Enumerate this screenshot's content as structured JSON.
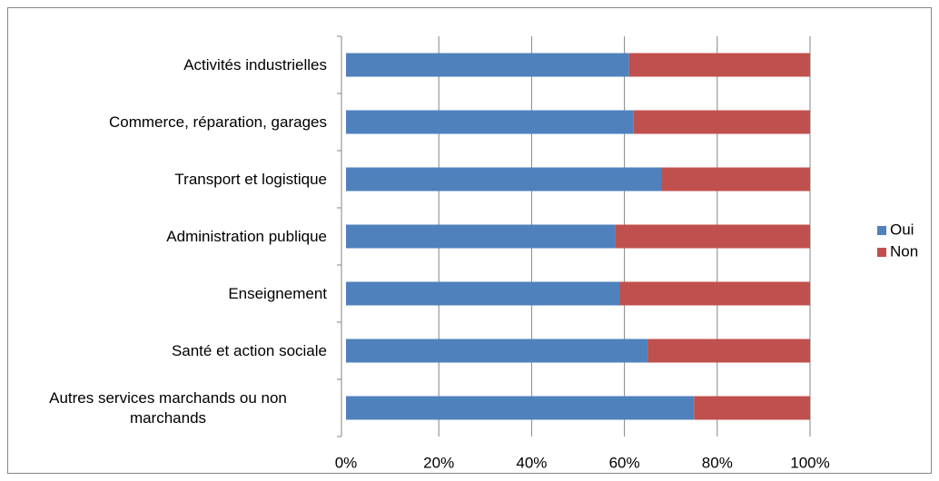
{
  "chart_data": {
    "type": "stacked-bar-horizontal",
    "categories": [
      "Activités industrielles",
      "Commerce, réparation, garages",
      "Transport et logistique",
      "Administration publique",
      "Enseignement",
      "Santé et action sociale",
      "Autres services marchands ou non marchands"
    ],
    "series": [
      {
        "name": "Oui",
        "color": "#4f81bd",
        "values": [
          61,
          62,
          68,
          58,
          59,
          65,
          75
        ]
      },
      {
        "name": "Non",
        "color": "#c0504d",
        "values": [
          39,
          38,
          32,
          42,
          41,
          35,
          25
        ]
      }
    ],
    "xlim": [
      0,
      100
    ],
    "xticks": [
      {
        "value": 0,
        "label": "0%"
      },
      {
        "value": 20,
        "label": "20%"
      },
      {
        "value": 40,
        "label": "40%"
      },
      {
        "value": 60,
        "label": "60%"
      },
      {
        "value": 80,
        "label": "80%"
      },
      {
        "value": 100,
        "label": "100%"
      }
    ],
    "grid": true,
    "legend": "right"
  }
}
